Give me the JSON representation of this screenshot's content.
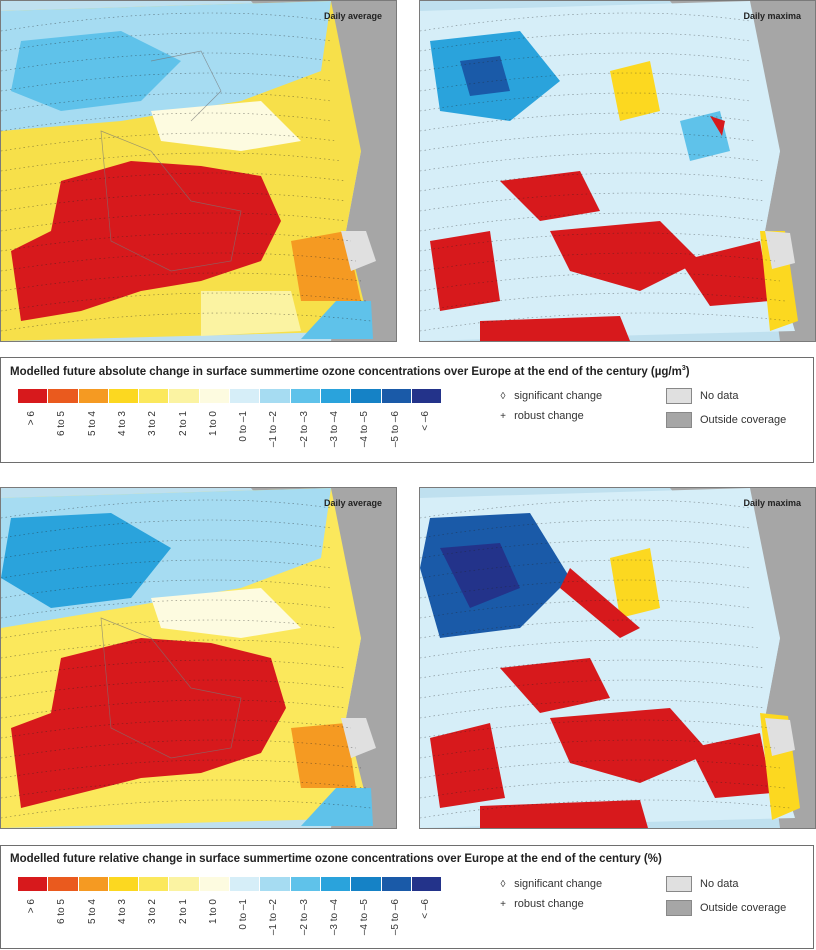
{
  "panels": {
    "top_left_title": "Daily average",
    "top_right_title": "Daily maxima",
    "bottom_left_title": "Daily average",
    "bottom_right_title": "Daily maxima"
  },
  "legend_top": {
    "title": "Modelled future absolute change in surface summertime ozone concentrations over Europe at the end of the century (µg/m",
    "title_sup": "3",
    "title_end": ")"
  },
  "legend_bottom": {
    "title": "Modelled future relative change in surface summertime ozone concentrations over Europe at the end of the century (%)"
  },
  "classes": [
    {
      "label": "> 6",
      "color": "#d7191c"
    },
    {
      "label": "6 to 5",
      "color": "#ea5a1e"
    },
    {
      "label": "5 to 4",
      "color": "#f59a22"
    },
    {
      "label": "4 to 3",
      "color": "#fcd820"
    },
    {
      "label": "3 to 2",
      "color": "#fbe85c"
    },
    {
      "label": "2 to 1",
      "color": "#fbf3a2"
    },
    {
      "label": "1 to 0",
      "color": "#fdfbe0"
    },
    {
      "label": "0 to –1",
      "color": "#d6eef8"
    },
    {
      "label": "–1 to –2",
      "color": "#a6dcf2"
    },
    {
      "label": "–2 to –3",
      "color": "#5fc2ea"
    },
    {
      "label": "–3 to –4",
      "color": "#2aa3dc"
    },
    {
      "label": "–4 to –5",
      "color": "#1582c6"
    },
    {
      "label": "–5 to –6",
      "color": "#1a5aa8"
    },
    {
      "label": "< –6",
      "color": "#23338a"
    }
  ],
  "symbols": {
    "significant_symbol": "◊",
    "significant_label": "significant change",
    "robust_symbol": "+",
    "robust_label": "robust change"
  },
  "boxes": {
    "no_data_label": "No data",
    "no_data_color": "#e0e0e0",
    "outside_label": "Outside coverage",
    "outside_color": "#a6a6a6"
  },
  "map_colors": {
    "sea": "#bfe0ef",
    "land_outside": "#a6a6a6",
    "no_data": "#e0e0e0"
  }
}
